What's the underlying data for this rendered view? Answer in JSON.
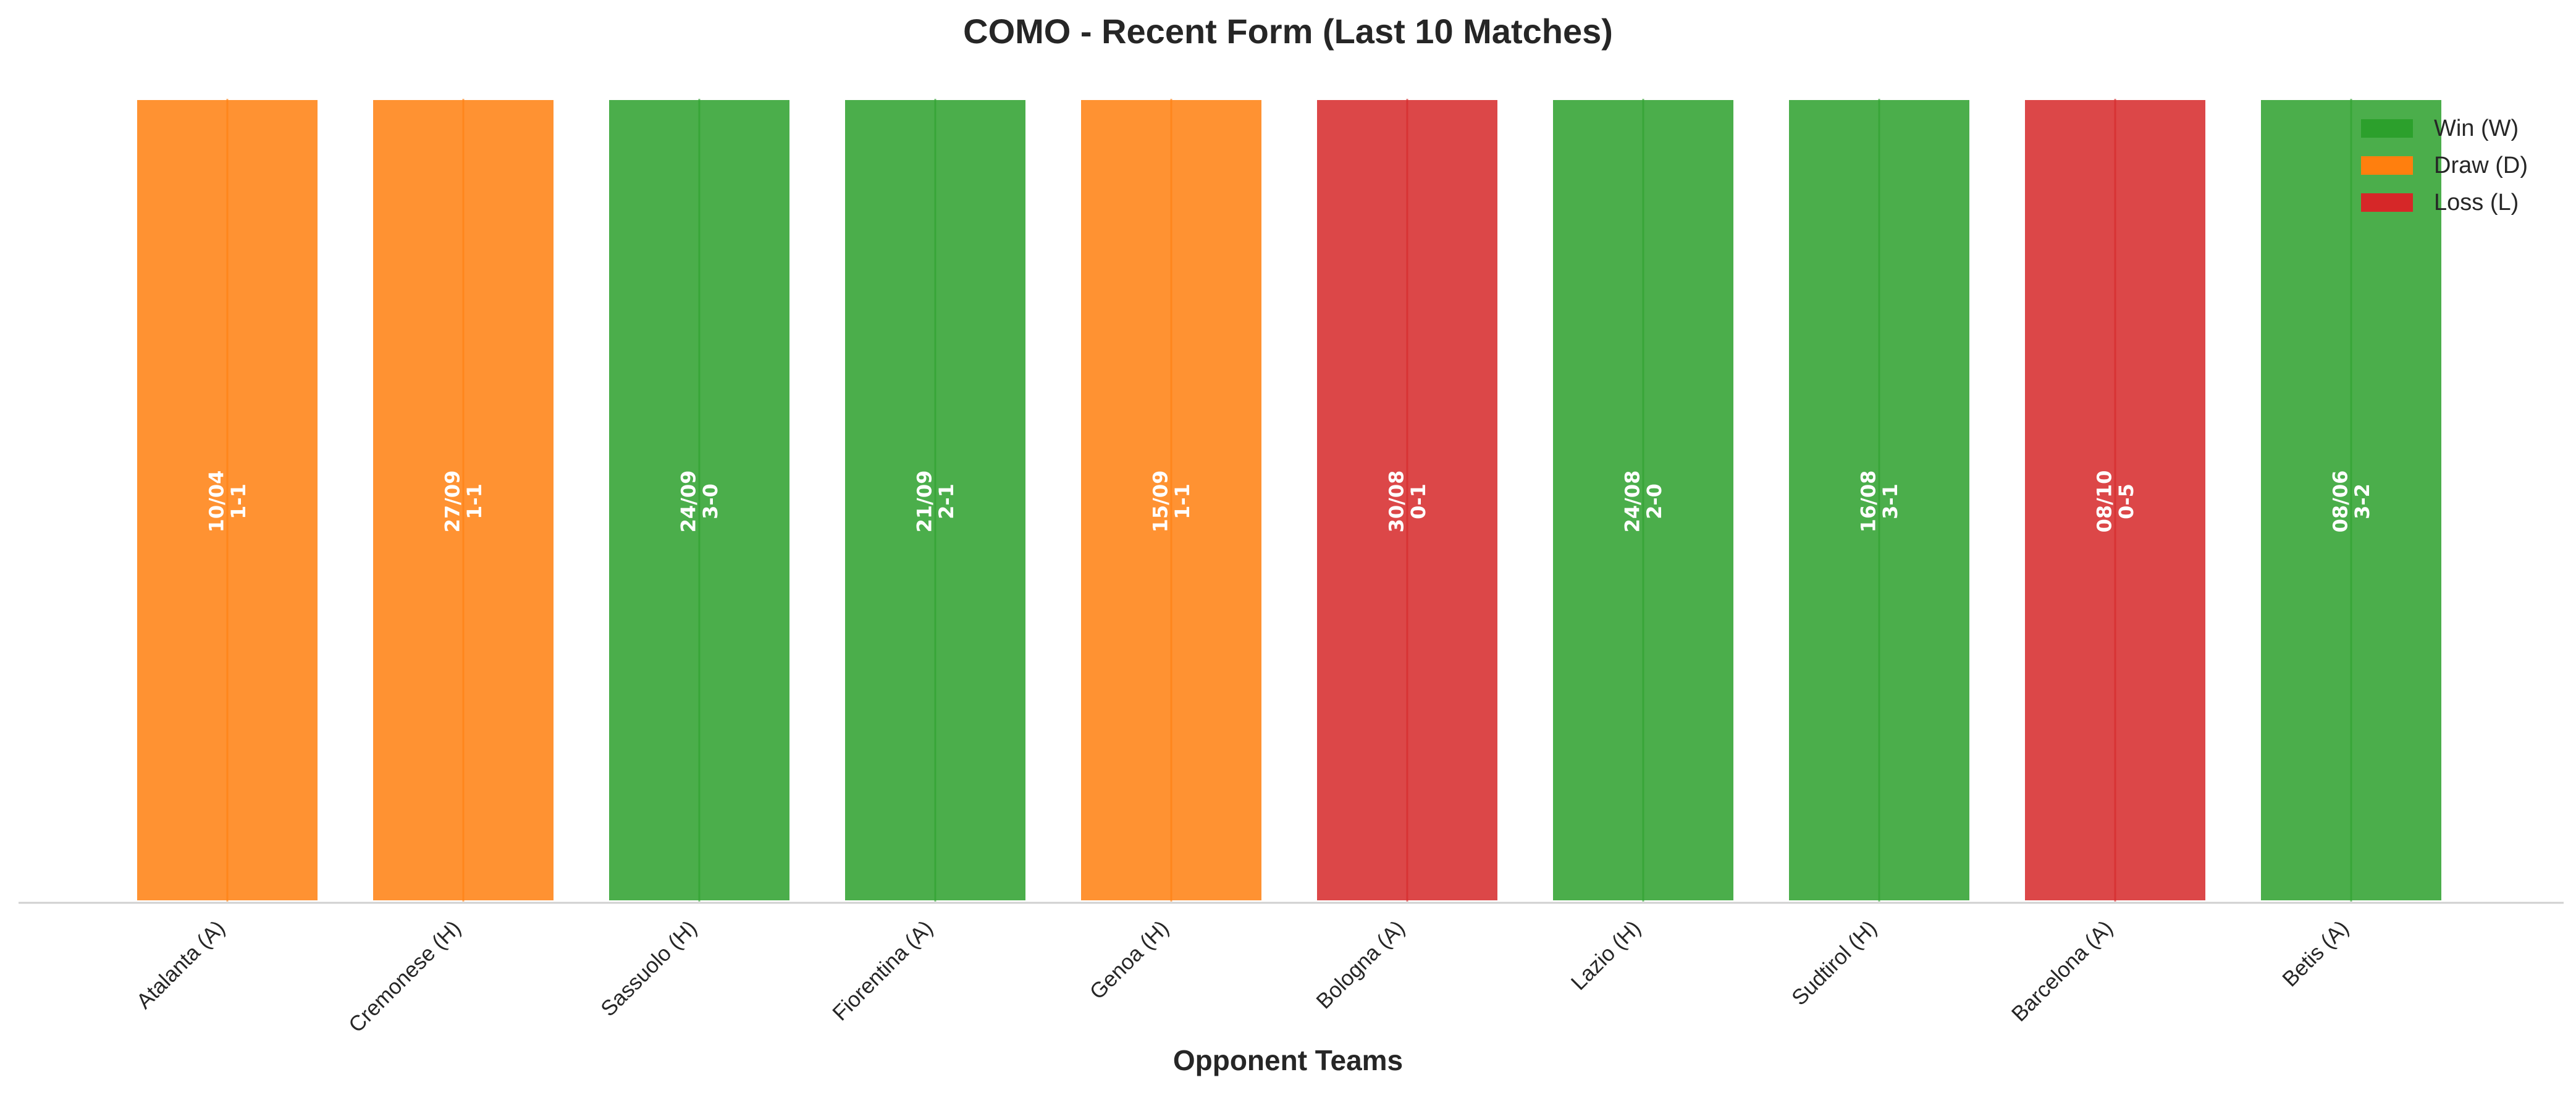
{
  "chart_data": {
    "type": "bar",
    "title": "COMO - Recent Form (Last 10 Matches)",
    "xlabel": "Opponent Teams",
    "ylabel": "",
    "categories": [
      "Atalanta (A)",
      "Cremonese (H)",
      "Sassuolo (H)",
      "Fiorentina (A)",
      "Genoa (H)",
      "Bologna (A)",
      "Lazio (H)",
      "Sudtirol (H)",
      "Barcelona (A)",
      "Betis (A)"
    ],
    "values": [
      1,
      1,
      1,
      1,
      1,
      1,
      1,
      1,
      1,
      1
    ],
    "results": [
      "D",
      "D",
      "W",
      "W",
      "D",
      "L",
      "W",
      "W",
      "L",
      "W"
    ],
    "dates": [
      "10/04",
      "27/09",
      "24/09",
      "21/09",
      "15/09",
      "30/08",
      "24/08",
      "16/08",
      "08/10",
      "08/06"
    ],
    "scores": [
      "1-1",
      "1-1",
      "3-0",
      "2-1",
      "1-1",
      "0-1",
      "2-0",
      "3-1",
      "0-5",
      "3-2"
    ],
    "ylim": [
      0,
      1
    ],
    "grid": false,
    "legend": {
      "placement": "top-right",
      "entries": [
        {
          "key": "W",
          "label": "Win (W)"
        },
        {
          "key": "D",
          "label": "Draw (D)"
        },
        {
          "key": "L",
          "label": "Loss (L)"
        }
      ]
    },
    "colors": {
      "W": "#2ca02c",
      "D": "#ff7f0e",
      "L": "#d62728",
      "axis": "#d0d0d0"
    }
  }
}
